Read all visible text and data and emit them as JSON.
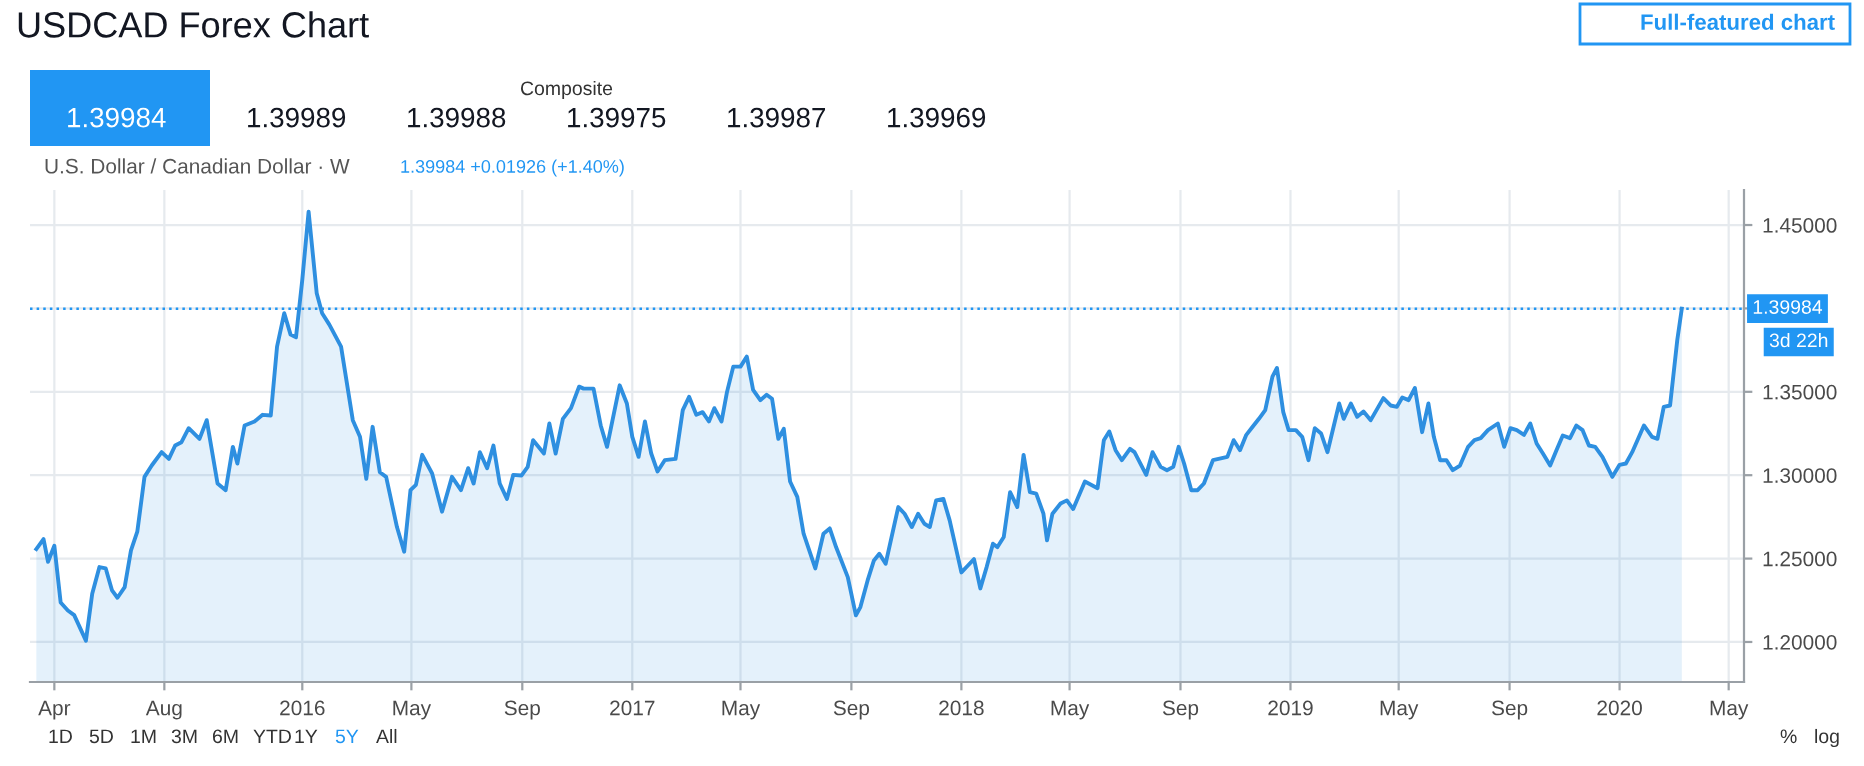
{
  "chart_data": {
    "type": "area",
    "title": "USDCAD Forex Chart",
    "subtitle": "U.S. Dollar / Canadian Dollar · W",
    "annotations": [
      "Full-featured chart",
      "1.39984 +0.01926 (+1.40%)",
      "3d 22h",
      "Composite",
      "1.39984",
      "1.39989",
      "1.39988",
      "1.39975",
      "1.39987",
      "1.39969",
      "1D",
      "5D",
      "1M",
      "3M",
      "6M",
      "YTD",
      "1Y",
      "5Y",
      "All",
      "%",
      "log"
    ],
    "series": [
      {
        "color": "#2e8fe0",
        "x": [
          "2015-03-12",
          "2015-03-20",
          "2015-03-25",
          "2015-04-01",
          "2015-04-08",
          "2015-04-16",
          "2015-04-23",
          "2015-05-06",
          "2015-05-13",
          "2015-05-21",
          "2015-05-28",
          "2015-06-04",
          "2015-06-10",
          "2015-06-18",
          "2015-06-25",
          "2015-07-02",
          "2015-07-10",
          "2015-07-18",
          "2015-07-29",
          "2015-08-06",
          "2015-08-13",
          "2015-08-20",
          "2015-08-28",
          "2015-09-09",
          "2015-09-17",
          "2015-09-29",
          "2015-10-08",
          "2015-10-16",
          "2015-10-21",
          "2015-10-29",
          "2015-11-09",
          "2015-11-18",
          "2015-11-27",
          "2015-12-04",
          "2015-12-12",
          "2015-12-19",
          "2015-12-25",
          "2016-01-01",
          "2016-01-08",
          "2016-01-17",
          "2016-01-23",
          "2016-01-31",
          "2016-02-13",
          "2016-02-26",
          "2016-03-05",
          "2016-03-12",
          "2016-03-19",
          "2016-03-27",
          "2016-04-03",
          "2016-04-15",
          "2016-04-23",
          "2016-04-30",
          "2016-05-06",
          "2016-05-13",
          "2016-05-24",
          "2016-06-04",
          "2016-06-15",
          "2016-06-25",
          "2016-07-03",
          "2016-07-09",
          "2016-07-16",
          "2016-07-24",
          "2016-07-31",
          "2016-08-07",
          "2016-08-15",
          "2016-08-22",
          "2016-08-31",
          "2016-09-07",
          "2016-09-13",
          "2016-09-25",
          "2016-10-01",
          "2016-10-08",
          "2016-10-16",
          "2016-10-25",
          "2016-11-03",
          "2016-11-08",
          "2016-11-19",
          "2016-11-27",
          "2016-12-04",
          "2016-12-18",
          "2016-12-26",
          "2017-01-01",
          "2017-01-08",
          "2017-01-15",
          "2017-01-22",
          "2017-01-29",
          "2017-02-06",
          "2017-02-18",
          "2017-02-26",
          "2017-03-05",
          "2017-03-13",
          "2017-03-20",
          "2017-03-27",
          "2017-04-02",
          "2017-04-10",
          "2017-04-16",
          "2017-04-23",
          "2017-05-01",
          "2017-05-08",
          "2017-05-15",
          "2017-05-23",
          "2017-05-30",
          "2017-06-05",
          "2017-06-12",
          "2017-06-18",
          "2017-06-25",
          "2017-07-03",
          "2017-07-10",
          "2017-07-23",
          "2017-08-01",
          "2017-08-08",
          "2017-08-15",
          "2017-08-28",
          "2017-09-06",
          "2017-09-11",
          "2017-09-19",
          "2017-09-26",
          "2017-10-02",
          "2017-10-09",
          "2017-10-23",
          "2017-10-30",
          "2017-11-07",
          "2017-11-14",
          "2017-11-21",
          "2017-11-27",
          "2017-12-04",
          "2017-12-12",
          "2017-12-19",
          "2018-01-01",
          "2018-01-08",
          "2018-01-15",
          "2018-01-22",
          "2018-01-29",
          "2018-02-05",
          "2018-02-10",
          "2018-02-17",
          "2018-02-24",
          "2018-03-04",
          "2018-03-11",
          "2018-03-18",
          "2018-03-25",
          "2018-04-02",
          "2018-04-06",
          "2018-04-12",
          "2018-04-21",
          "2018-04-28",
          "2018-05-05",
          "2018-05-18",
          "2018-06-01",
          "2018-06-08",
          "2018-06-14",
          "2018-06-21",
          "2018-06-28",
          "2018-07-07",
          "2018-07-12",
          "2018-07-25",
          "2018-08-01",
          "2018-08-10",
          "2018-08-17",
          "2018-08-24",
          "2018-08-30",
          "2018-09-05",
          "2018-09-13",
          "2018-09-20",
          "2018-09-27",
          "2018-10-07",
          "2018-10-23",
          "2018-10-30",
          "2018-11-06",
          "2018-11-13",
          "2018-11-20",
          "2018-11-27",
          "2018-12-04",
          "2018-12-12",
          "2018-12-17",
          "2018-12-24",
          "2018-12-30",
          "2019-01-07",
          "2019-01-14",
          "2019-01-21",
          "2019-01-28",
          "2019-02-04",
          "2019-02-11",
          "2019-02-24",
          "2019-03-01",
          "2019-03-09",
          "2019-03-16",
          "2019-03-23",
          "2019-03-31",
          "2019-04-14",
          "2019-04-22",
          "2019-04-29",
          "2019-05-05",
          "2019-05-12",
          "2019-05-19",
          "2019-05-27",
          "2019-06-03",
          "2019-06-09",
          "2019-06-16",
          "2019-06-23",
          "2019-06-30",
          "2019-07-08",
          "2019-07-17",
          "2019-07-24",
          "2019-07-31",
          "2019-08-08",
          "2019-08-19",
          "2019-08-26",
          "2019-09-02",
          "2019-09-09",
          "2019-09-17",
          "2019-09-24",
          "2019-10-01",
          "2019-10-08",
          "2019-10-16",
          "2019-10-23",
          "2019-10-30",
          "2019-11-07",
          "2019-11-14",
          "2019-11-21",
          "2019-11-28",
          "2019-12-05",
          "2019-12-13",
          "2019-12-24",
          "2020-01-01",
          "2020-01-08",
          "2020-01-15",
          "2020-01-28",
          "2020-02-06",
          "2020-02-12",
          "2020-02-19",
          "2020-02-26",
          "2020-03-05",
          "2020-03-10"
        ],
        "values": [
          1.2557,
          1.2617,
          1.2481,
          1.2577,
          1.2237,
          1.2189,
          1.2161,
          1.2008,
          1.2289,
          1.2449,
          1.2441,
          1.2309,
          1.2265,
          1.2329,
          1.2549,
          1.2661,
          1.299,
          1.3058,
          1.3138,
          1.3098,
          1.3178,
          1.3198,
          1.3282,
          1.3218,
          1.333,
          1.295,
          1.291,
          1.317,
          1.307,
          1.3298,
          1.3322,
          1.3362,
          1.3358,
          1.3771,
          1.3971,
          1.3843,
          1.3827,
          1.4172,
          1.458,
          1.4091,
          1.3971,
          1.3903,
          1.3771,
          1.333,
          1.323,
          1.2978,
          1.329,
          1.3018,
          1.299,
          1.2689,
          1.2541,
          1.291,
          1.2942,
          1.3122,
          1.301,
          1.2781,
          1.299,
          1.291,
          1.3042,
          1.295,
          1.3138,
          1.3042,
          1.3178,
          1.295,
          1.2858,
          1.3002,
          1.2998,
          1.305,
          1.321,
          1.313,
          1.331,
          1.313,
          1.3338,
          1.3402,
          1.3531,
          1.3519,
          1.3519,
          1.3298,
          1.317,
          1.3539,
          1.343,
          1.323,
          1.311,
          1.3322,
          1.313,
          1.3022,
          1.309,
          1.3098,
          1.339,
          1.347,
          1.3362,
          1.3378,
          1.3322,
          1.3402,
          1.3322,
          1.3498,
          1.3651,
          1.3651,
          1.3711,
          1.3511,
          1.345,
          1.3482,
          1.3458,
          1.3218,
          1.3278,
          1.2962,
          1.287,
          1.2649,
          1.2441,
          1.2649,
          1.2681,
          1.2569,
          1.2389,
          1.216,
          1.2209,
          1.2369,
          1.2489,
          1.2529,
          1.2469,
          1.2809,
          1.2769,
          1.2689,
          1.2769,
          1.2709,
          1.2689,
          1.2849,
          1.2858,
          1.2729,
          1.2417,
          1.2457,
          1.2497,
          1.2321,
          1.2449,
          1.2589,
          1.2569,
          1.2629,
          1.2898,
          1.2809,
          1.3122,
          1.2898,
          1.289,
          1.2769,
          1.2609,
          1.2769,
          1.283,
          1.2849,
          1.2797,
          1.2962,
          1.2922,
          1.321,
          1.3262,
          1.315,
          1.309,
          1.3158,
          1.3138,
          1.3002,
          1.3138,
          1.305,
          1.303,
          1.305,
          1.317,
          1.307,
          1.291,
          1.291,
          1.295,
          1.309,
          1.311,
          1.321,
          1.315,
          1.3242,
          1.329,
          1.3338,
          1.339,
          1.3591,
          1.3643,
          1.3378,
          1.327,
          1.327,
          1.323,
          1.309,
          1.3282,
          1.325,
          1.3138,
          1.343,
          1.3338,
          1.343,
          1.335,
          1.3382,
          1.333,
          1.3462,
          1.3418,
          1.341,
          1.3466,
          1.345,
          1.3523,
          1.3258,
          1.343,
          1.323,
          1.309,
          1.309,
          1.303,
          1.3058,
          1.317,
          1.321,
          1.3222,
          1.327,
          1.331,
          1.317,
          1.3282,
          1.327,
          1.3242,
          1.331,
          1.319,
          1.313,
          1.3058,
          1.315,
          1.3238,
          1.3222,
          1.3298,
          1.327,
          1.3178,
          1.317,
          1.311,
          1.299,
          1.3062,
          1.307,
          1.3138,
          1.3298,
          1.323,
          1.3218,
          1.341,
          1.3418,
          1.3811,
          1.3998
        ]
      }
    ],
    "xlim": [
      "2015-03-05",
      "2020-05-18"
    ],
    "xticks": [
      {
        "value": "2015-04-01",
        "label": "Apr"
      },
      {
        "value": "2015-08-01",
        "label": "Aug"
      },
      {
        "value": "2016-01-01",
        "label": "2016"
      },
      {
        "value": "2016-05-01",
        "label": "May"
      },
      {
        "value": "2016-09-01",
        "label": "Sep"
      },
      {
        "value": "2017-01-01",
        "label": "2017"
      },
      {
        "value": "2017-05-01",
        "label": "May"
      },
      {
        "value": "2017-09-01",
        "label": "Sep"
      },
      {
        "value": "2018-01-01",
        "label": "2018"
      },
      {
        "value": "2018-05-01",
        "label": "May"
      },
      {
        "value": "2018-09-01",
        "label": "Sep"
      },
      {
        "value": "2019-01-01",
        "label": "2019"
      },
      {
        "value": "2019-05-01",
        "label": "May"
      },
      {
        "value": "2019-09-01",
        "label": "Sep"
      },
      {
        "value": "2020-01-01",
        "label": "2020"
      },
      {
        "value": "2020-05-01",
        "label": "May"
      }
    ],
    "ylim": [
      1.176,
      1.471
    ],
    "yticks": [
      {
        "value": 1.2,
        "label": "1.20000"
      },
      {
        "value": 1.25,
        "label": "1.25000"
      },
      {
        "value": 1.3,
        "label": "1.30000"
      },
      {
        "value": 1.35,
        "label": "1.35000"
      },
      {
        "value": 1.4,
        "label": null
      },
      {
        "value": 1.45,
        "label": "1.45000"
      }
    ],
    "ref_lines": [
      {
        "axis": "y",
        "value": 1.39984,
        "label": "1.39984",
        "color": "#2196f3",
        "line_style": "dotted"
      }
    ],
    "grid": true,
    "marker": "none",
    "line_style": "solid"
  }
}
